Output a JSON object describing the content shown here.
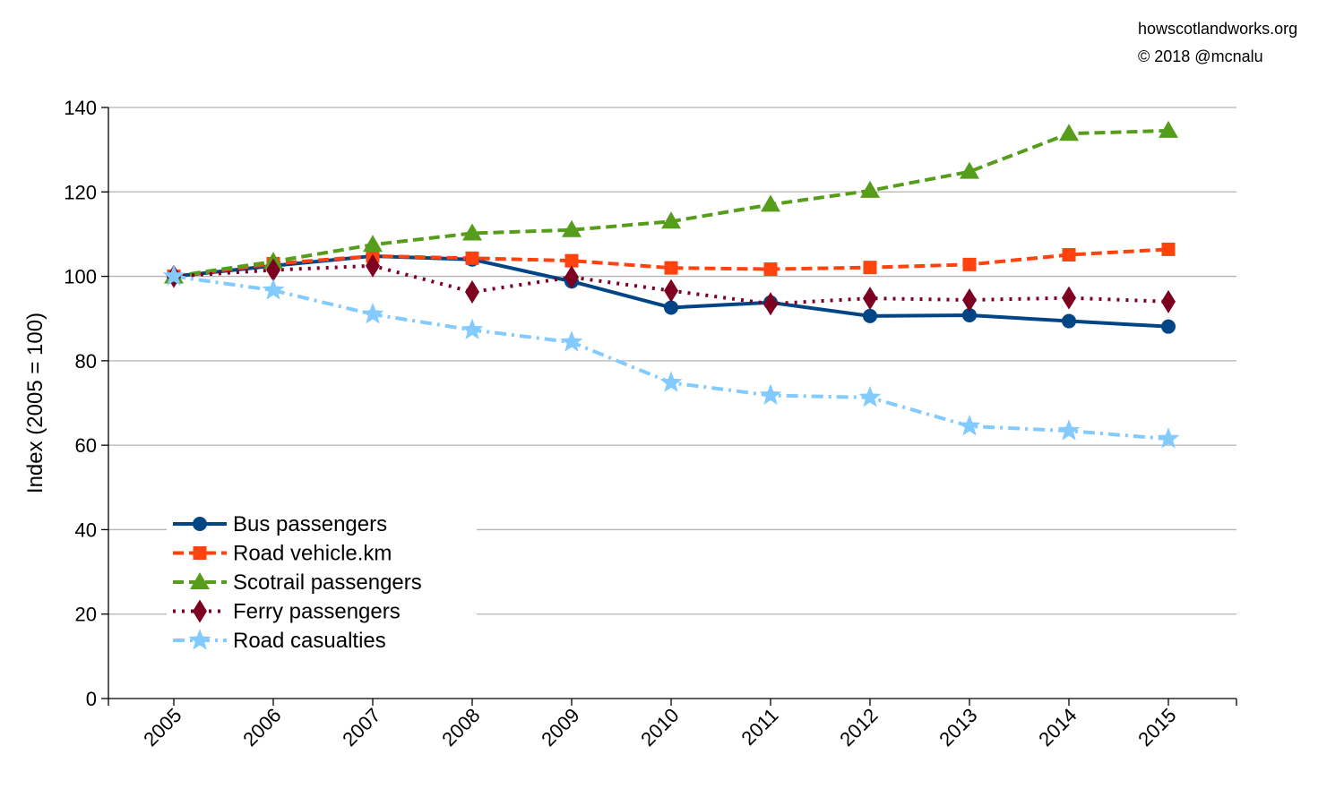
{
  "credits": {
    "site": "howscotlandworks.org",
    "copyright": "© 2018  @mcnalu"
  },
  "chart_data": {
    "type": "line",
    "title": "",
    "xlabel": "",
    "ylabel": "Index (2005 = 100)",
    "ylim": [
      0,
      140
    ],
    "yticks": [
      0,
      20,
      40,
      60,
      80,
      100,
      120,
      140
    ],
    "grid": true,
    "legend_position": "bottom-left",
    "categories": [
      "2005",
      "2006",
      "2007",
      "2008",
      "2009",
      "2010",
      "2011",
      "2012",
      "2013",
      "2014",
      "2015"
    ],
    "series": [
      {
        "name": "Bus passengers",
        "color": "#004586",
        "dash": "solid",
        "marker": "circle",
        "values": [
          100,
          102.5,
          104.8,
          104,
          98.8,
          92.6,
          93.8,
          90.6,
          90.8,
          89.4,
          88.1
        ]
      },
      {
        "name": "Road vehicle.km",
        "color": "#ff420e",
        "dash": "dashed",
        "marker": "square",
        "values": [
          100,
          103,
          104.8,
          104.3,
          103.7,
          102,
          101.7,
          102.1,
          102.8,
          105.1,
          106.4
        ]
      },
      {
        "name": "Scotrail passengers",
        "color": "#579d1c",
        "dash": "dashed",
        "marker": "triangle",
        "values": [
          100,
          103.5,
          107.5,
          110.2,
          111,
          113,
          117,
          120.3,
          124.8,
          133.8,
          134.5
        ]
      },
      {
        "name": "Ferry passengers",
        "color": "#7e0021",
        "dash": "dotted",
        "marker": "diamond",
        "values": [
          100,
          101.5,
          102.5,
          96.3,
          99.8,
          96.6,
          93.5,
          94.8,
          94.4,
          94.9,
          94
        ]
      },
      {
        "name": "Road casualties",
        "color": "#83caff",
        "dash": "dashdot",
        "marker": "star",
        "values": [
          100,
          96.7,
          91,
          87.3,
          84.4,
          74.8,
          71.8,
          71.3,
          64.5,
          63.4,
          61.5
        ]
      }
    ]
  }
}
